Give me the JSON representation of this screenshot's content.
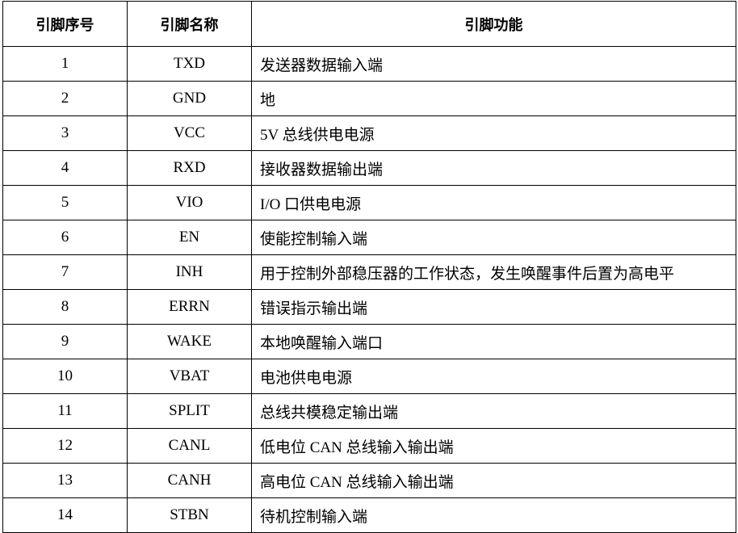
{
  "table": {
    "headers": [
      "引脚序号",
      "引脚名称",
      "引脚功能"
    ],
    "rows": [
      {
        "no": "1",
        "name": "TXD",
        "func": "发送器数据输入端"
      },
      {
        "no": "2",
        "name": "GND",
        "func": "地"
      },
      {
        "no": "3",
        "name": "VCC",
        "func": "5V 总线供电电源"
      },
      {
        "no": "4",
        "name": "RXD",
        "func": "接收器数据输出端"
      },
      {
        "no": "5",
        "name": "VIO",
        "func": "I/O 口供电电源"
      },
      {
        "no": "6",
        "name": "EN",
        "func": "使能控制输入端"
      },
      {
        "no": "7",
        "name": "INH",
        "func": "用于控制外部稳压器的工作状态，发生唤醒事件后置为高电平"
      },
      {
        "no": "8",
        "name": "ERRN",
        "func": "错误指示输出端"
      },
      {
        "no": "9",
        "name": "WAKE",
        "func": "本地唤醒输入端口"
      },
      {
        "no": "10",
        "name": "VBAT",
        "func": "电池供电电源"
      },
      {
        "no": "11",
        "name": "SPLIT",
        "func": "总线共模稳定输出端"
      },
      {
        "no": "12",
        "name": "CANL",
        "func": "低电位 CAN 总线输入输出端"
      },
      {
        "no": "13",
        "name": "CANH",
        "func": "高电位 CAN 总线输入输出端"
      },
      {
        "no": "14",
        "name": "STBN",
        "func": "待机控制输入端"
      }
    ]
  }
}
